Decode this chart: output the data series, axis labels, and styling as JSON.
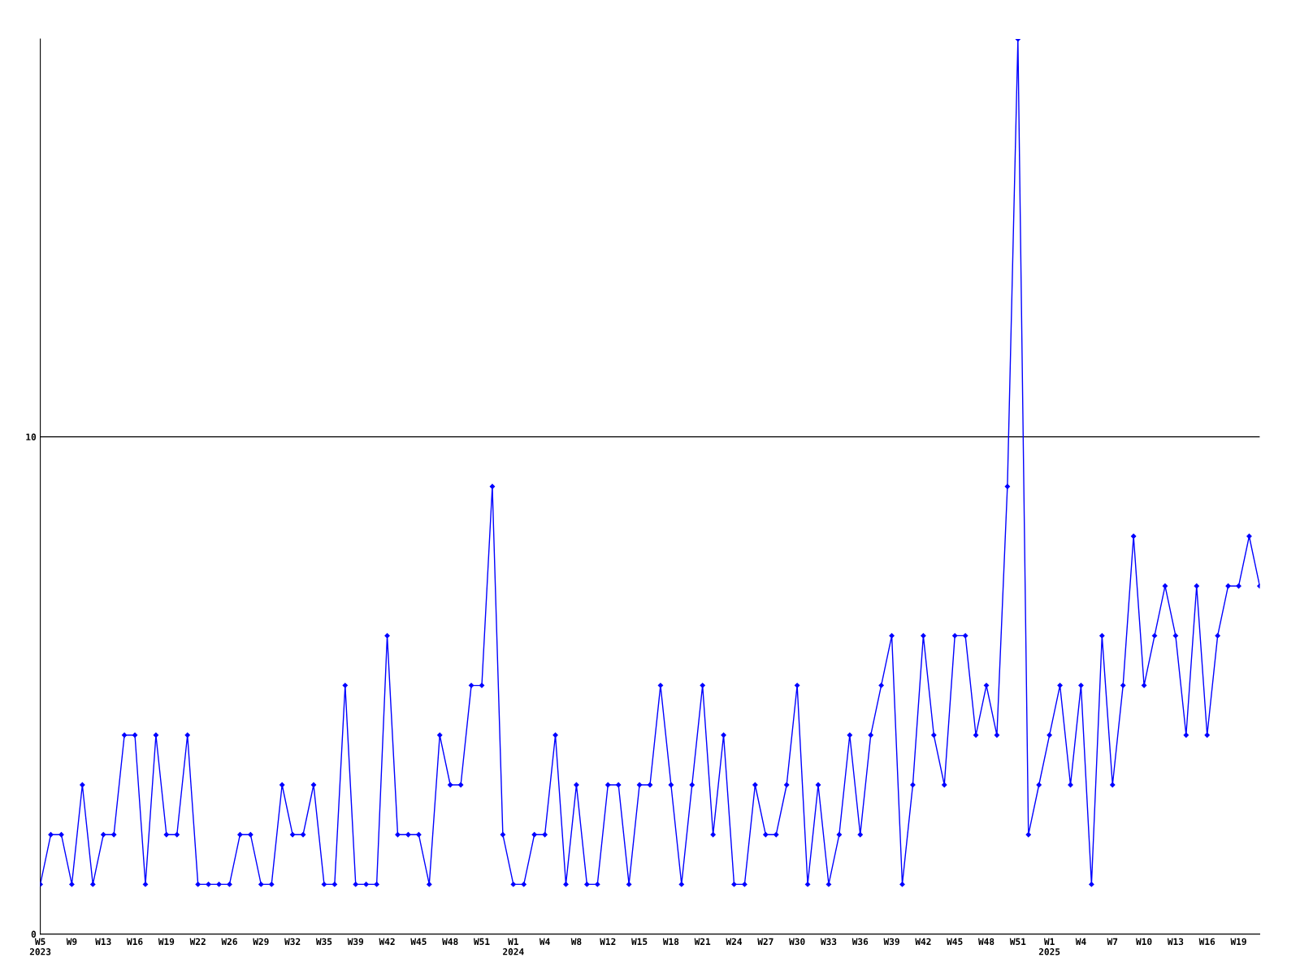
{
  "chart_data": {
    "type": "line",
    "categories": [
      "W5\n2023",
      null,
      null,
      "W9",
      null,
      null,
      "W13",
      null,
      null,
      "W16",
      null,
      null,
      "W19",
      null,
      null,
      "W22",
      null,
      null,
      "W26",
      null,
      null,
      "W29",
      null,
      null,
      "W32",
      null,
      null,
      "W35",
      null,
      null,
      "W39",
      null,
      null,
      "W42",
      null,
      null,
      "W45",
      null,
      null,
      "W48",
      null,
      null,
      "W51",
      null,
      null,
      "W1\n2024",
      null,
      null,
      "W4",
      null,
      null,
      "W8",
      null,
      null,
      "W12",
      null,
      null,
      "W15",
      null,
      null,
      "W18",
      null,
      null,
      "W21",
      null,
      null,
      "W24",
      null,
      null,
      "W27",
      null,
      null,
      "W30",
      null,
      null,
      "W33",
      null,
      null,
      "W36",
      null,
      null,
      "W39",
      null,
      null,
      "W42",
      null,
      null,
      "W45",
      null,
      null,
      "W48",
      null,
      null,
      "W51",
      null,
      null,
      "W1\n2025",
      null,
      null,
      "W4",
      null,
      null,
      "W7",
      null,
      null,
      "W10",
      null,
      null,
      "W13",
      null,
      null,
      "W16",
      null,
      null,
      "W19",
      null,
      null
    ],
    "series": [
      {
        "color": "#0000ff",
        "values": [
          1,
          2,
          2,
          1,
          3,
          1,
          2,
          2,
          4,
          4,
          1,
          4,
          2,
          2,
          4,
          1,
          1,
          1,
          1,
          2,
          2,
          1,
          1,
          3,
          2,
          2,
          3,
          1,
          1,
          5,
          1,
          1,
          1,
          6,
          2,
          2,
          2,
          1,
          4,
          3,
          3,
          5,
          5,
          9,
          2,
          1,
          1,
          2,
          2,
          4,
          1,
          3,
          1,
          1,
          3,
          3,
          1,
          3,
          3,
          5,
          3,
          1,
          3,
          5,
          2,
          4,
          1,
          1,
          3,
          2,
          2,
          3,
          5,
          1,
          3,
          1,
          2,
          4,
          2,
          4,
          5,
          6,
          1,
          3,
          6,
          4,
          3,
          6,
          6,
          4,
          5,
          4,
          9,
          18,
          2,
          3,
          4,
          5,
          3,
          5,
          1,
          6,
          3,
          5,
          8,
          5,
          6,
          7,
          6,
          4,
          7,
          4,
          6,
          7,
          7,
          8,
          7
        ]
      }
    ],
    "ylim": [
      0,
      18
    ],
    "yticks": [
      0,
      10
    ],
    "grid": "y",
    "marker": "diamond",
    "line_style": "solid"
  }
}
